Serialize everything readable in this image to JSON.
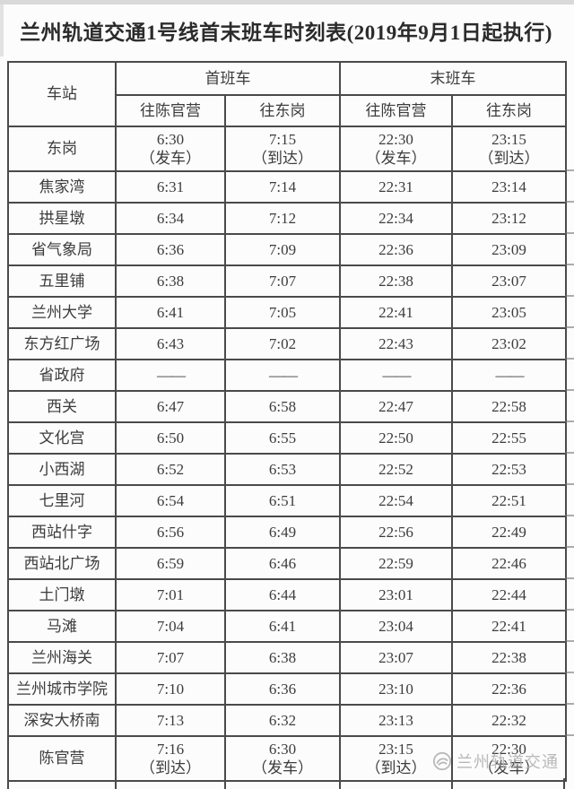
{
  "page": {
    "title": "兰州轨道交通1号线首末班车时刻表(2019年9月1日起执行)"
  },
  "table": {
    "station_header": "车站",
    "groups": [
      {
        "label": "首班车",
        "sub": [
          "往陈官营",
          "往东岗"
        ]
      },
      {
        "label": "末班车",
        "sub": [
          "往陈官营",
          "往东岗"
        ]
      }
    ],
    "rows": [
      {
        "station": "东岗",
        "tall": true,
        "cells": [
          [
            "6:30",
            "（发车）"
          ],
          [
            "7:15",
            "（到达）"
          ],
          [
            "22:30",
            "（发车）"
          ],
          [
            "23:15",
            "（到达）"
          ]
        ]
      },
      {
        "station": "焦家湾",
        "tall": false,
        "cells": [
          [
            "6:31"
          ],
          [
            "7:14"
          ],
          [
            "22:31"
          ],
          [
            "23:14"
          ]
        ]
      },
      {
        "station": "拱星墩",
        "tall": false,
        "cells": [
          [
            "6:34"
          ],
          [
            "7:12"
          ],
          [
            "22:34"
          ],
          [
            "23:12"
          ]
        ]
      },
      {
        "station": "省气象局",
        "tall": false,
        "cells": [
          [
            "6:36"
          ],
          [
            "7:09"
          ],
          [
            "22:36"
          ],
          [
            "23:09"
          ]
        ]
      },
      {
        "station": "五里铺",
        "tall": false,
        "cells": [
          [
            "6:38"
          ],
          [
            "7:07"
          ],
          [
            "22:38"
          ],
          [
            "23:07"
          ]
        ]
      },
      {
        "station": "兰州大学",
        "tall": false,
        "cells": [
          [
            "6:41"
          ],
          [
            "7:05"
          ],
          [
            "22:41"
          ],
          [
            "23:05"
          ]
        ]
      },
      {
        "station": "东方红广场",
        "tall": false,
        "cells": [
          [
            "6:43"
          ],
          [
            "7:02"
          ],
          [
            "22:43"
          ],
          [
            "23:02"
          ]
        ]
      },
      {
        "station": "省政府",
        "tall": false,
        "dash": true,
        "cells": [
          [
            "——"
          ],
          [
            "——"
          ],
          [
            "——"
          ],
          [
            "——"
          ]
        ]
      },
      {
        "station": "西关",
        "tall": false,
        "cells": [
          [
            "6:47"
          ],
          [
            "6:58"
          ],
          [
            "22:47"
          ],
          [
            "22:58"
          ]
        ]
      },
      {
        "station": "文化宫",
        "tall": false,
        "cells": [
          [
            "6:50"
          ],
          [
            "6:55"
          ],
          [
            "22:50"
          ],
          [
            "22:55"
          ]
        ]
      },
      {
        "station": "小西湖",
        "tall": false,
        "cells": [
          [
            "6:52"
          ],
          [
            "6:53"
          ],
          [
            "22:52"
          ],
          [
            "22:53"
          ]
        ]
      },
      {
        "station": "七里河",
        "tall": false,
        "cells": [
          [
            "6:54"
          ],
          [
            "6:51"
          ],
          [
            "22:54"
          ],
          [
            "22:51"
          ]
        ]
      },
      {
        "station": "西站什字",
        "tall": false,
        "cells": [
          [
            "6:56"
          ],
          [
            "6:49"
          ],
          [
            "22:56"
          ],
          [
            "22:49"
          ]
        ]
      },
      {
        "station": "西站北广场",
        "tall": false,
        "cells": [
          [
            "6:59"
          ],
          [
            "6:46"
          ],
          [
            "22:59"
          ],
          [
            "22:46"
          ]
        ]
      },
      {
        "station": "土门墩",
        "tall": false,
        "cells": [
          [
            "7:01"
          ],
          [
            "6:44"
          ],
          [
            "23:01"
          ],
          [
            "22:44"
          ]
        ]
      },
      {
        "station": "马滩",
        "tall": false,
        "cells": [
          [
            "7:04"
          ],
          [
            "6:41"
          ],
          [
            "23:04"
          ],
          [
            "22:41"
          ]
        ]
      },
      {
        "station": "兰州海关",
        "tall": false,
        "cells": [
          [
            "7:07"
          ],
          [
            "6:38"
          ],
          [
            "23:07"
          ],
          [
            "22:38"
          ]
        ]
      },
      {
        "station": "兰州城市学院",
        "tall": false,
        "cells": [
          [
            "7:10"
          ],
          [
            "6:36"
          ],
          [
            "23:10"
          ],
          [
            "22:36"
          ]
        ]
      },
      {
        "station": "深安大桥南",
        "tall": false,
        "cells": [
          [
            "7:13"
          ],
          [
            "6:32"
          ],
          [
            "23:13"
          ],
          [
            "22:32"
          ]
        ]
      },
      {
        "station": "陈官营",
        "tall": true,
        "cells": [
          [
            "7:16",
            "（到达）"
          ],
          [
            "6:30",
            "（发车）"
          ],
          [
            "23:15",
            "（到达）"
          ],
          [
            "22:30",
            "（发车）"
          ]
        ]
      }
    ]
  },
  "watermark": {
    "text": "兰州轨道交通",
    "logo": "lanzhou-rail-transit-logo"
  },
  "colors": {
    "text": "#3c3c3c",
    "border": "#4a4a4a",
    "title": "#2b2b2b",
    "watermark": "#b2b2b4",
    "background": "#fcfcfc"
  }
}
